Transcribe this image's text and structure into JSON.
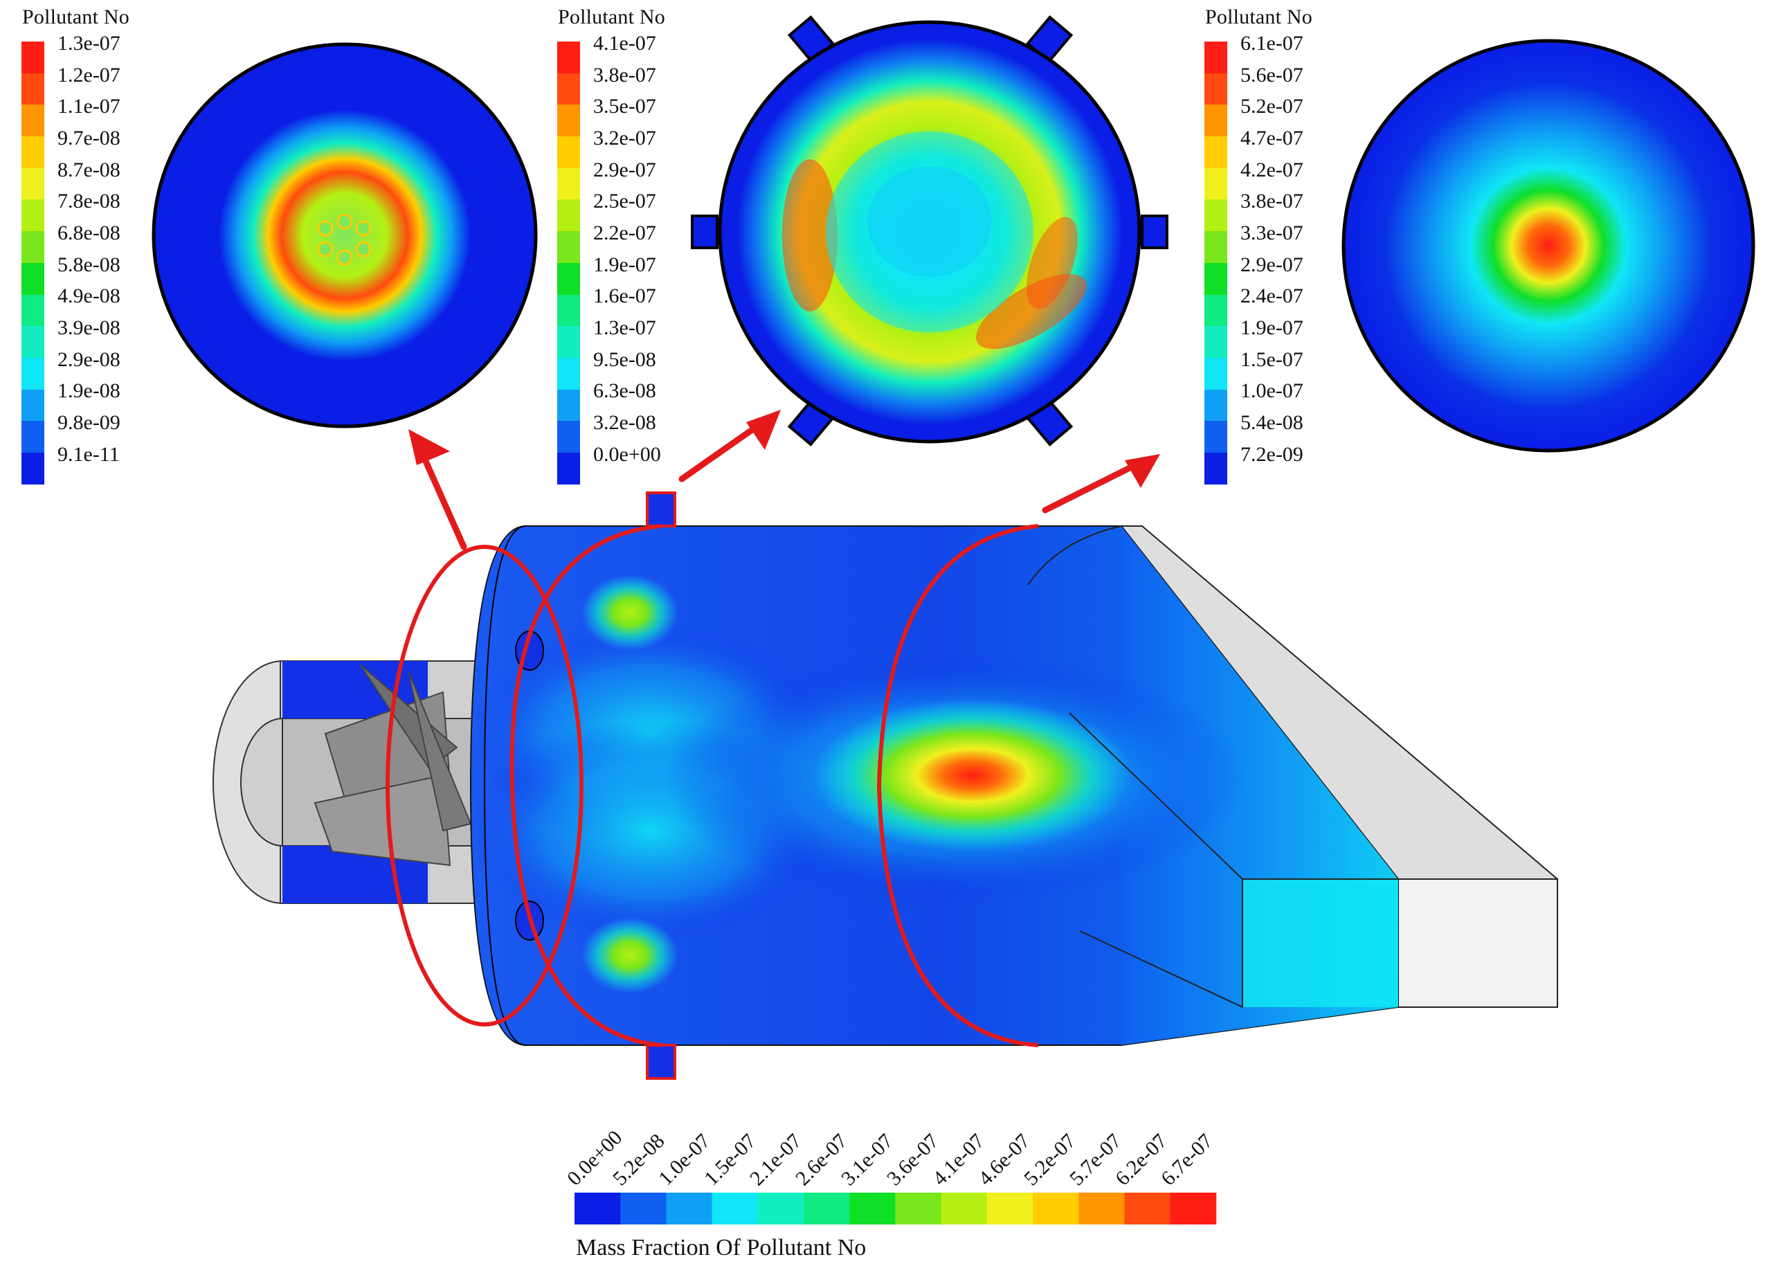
{
  "legend_top_left": {
    "title": "Pollutant No",
    "labels": [
      "1.3e-07",
      "1.2e-07",
      "1.1e-07",
      "9.7e-08",
      "8.7e-08",
      "7.8e-08",
      "6.8e-08",
      "5.8e-08",
      "4.9e-08",
      "3.9e-08",
      "2.9e-08",
      "1.9e-08",
      "9.8e-09",
      "9.1e-11"
    ]
  },
  "legend_top_middle": {
    "title": "Pollutant No",
    "labels": [
      "4.1e-07",
      "3.8e-07",
      "3.5e-07",
      "3.2e-07",
      "2.9e-07",
      "2.5e-07",
      "2.2e-07",
      "1.9e-07",
      "1.6e-07",
      "1.3e-07",
      "9.5e-08",
      "6.3e-08",
      "3.2e-08",
      "0.0e+00"
    ]
  },
  "legend_top_right": {
    "title": "Pollutant No",
    "labels": [
      "6.1e-07",
      "5.6e-07",
      "5.2e-07",
      "4.7e-07",
      "4.2e-07",
      "3.8e-07",
      "3.3e-07",
      "2.9e-07",
      "2.4e-07",
      "1.9e-07",
      "1.5e-07",
      "1.0e-07",
      "5.4e-08",
      "7.2e-09"
    ]
  },
  "legend_bottom": {
    "title": "Mass Fraction Of Pollutant No",
    "labels": [
      "0.0e+00",
      "5.2e-08",
      "1.0e-07",
      "1.5e-07",
      "2.1e-07",
      "2.6e-07",
      "3.1e-07",
      "3.6e-07",
      "4.1e-07",
      "4.6e-07",
      "5.2e-07",
      "5.7e-07",
      "6.2e-07",
      "6.7e-07"
    ]
  },
  "colormap": [
    "#0a1ee6",
    "#0f5ff0",
    "#0fa0f5",
    "#10e6f5",
    "#12eec0",
    "#10ea82",
    "#10df28",
    "#7ae61c",
    "#b4f014",
    "#f0f01e",
    "#ffcd00",
    "#ff9600",
    "#ff4b0f",
    "#ff1e14"
  ],
  "colors": {
    "arrow": "#e41a1a",
    "section_ring": "#e41a1a",
    "domain_base": "#1230e6",
    "casing_gray": "#d9d9d9"
  }
}
